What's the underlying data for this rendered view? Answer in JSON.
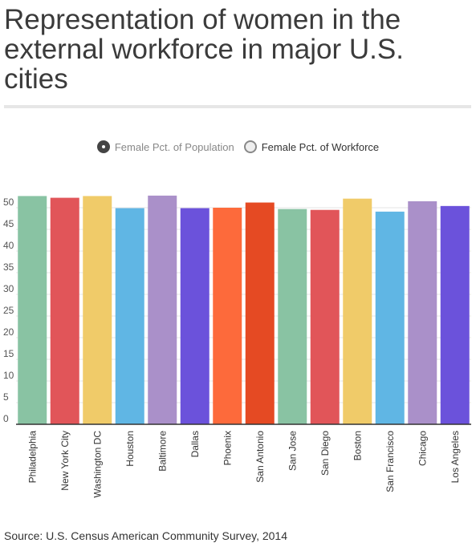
{
  "title": "Representation of women in the external workforce in major U.S. cities",
  "legend": {
    "population_label": "Female Pct. of Population",
    "workforce_label": "Female Pct. of Workforce"
  },
  "source": "Source: U.S. Census American Community Survey, 2014",
  "chart_data": {
    "type": "bar",
    "title": "Representation of women in the external workforce in major U.S. cities",
    "xlabel": "",
    "ylabel": "",
    "ylim": [
      0,
      53
    ],
    "yticks": [
      0,
      5,
      10,
      15,
      20,
      25,
      30,
      35,
      40,
      45,
      50
    ],
    "grid": true,
    "legend_position": "top-center",
    "categories": [
      "Philadelphia",
      "New York City",
      "Washington DC",
      "Houston",
      "Baltimore",
      "Dallas",
      "Phoenix",
      "San Antonio",
      "San Jose",
      "San Diego",
      "Boston",
      "San Francisco",
      "Chicago",
      "Los Angeles"
    ],
    "series": [
      {
        "name": "Female Pct. of Workforce",
        "values": [
          52.7,
          52.3,
          52.7,
          49.9,
          52.8,
          49.9,
          50.0,
          51.2,
          49.7,
          49.5,
          52.1,
          49.1,
          51.5,
          50.4
        ]
      }
    ],
    "colors": [
      "#89c3a3",
      "#e15559",
      "#f0cb69",
      "#60b6e4",
      "#aa90c9",
      "#6b52db",
      "#fd6a3b",
      "#e54a23",
      "#89c3a3",
      "#e15559",
      "#f0cb69",
      "#60b6e4",
      "#aa90c9",
      "#6b52db"
    ]
  }
}
